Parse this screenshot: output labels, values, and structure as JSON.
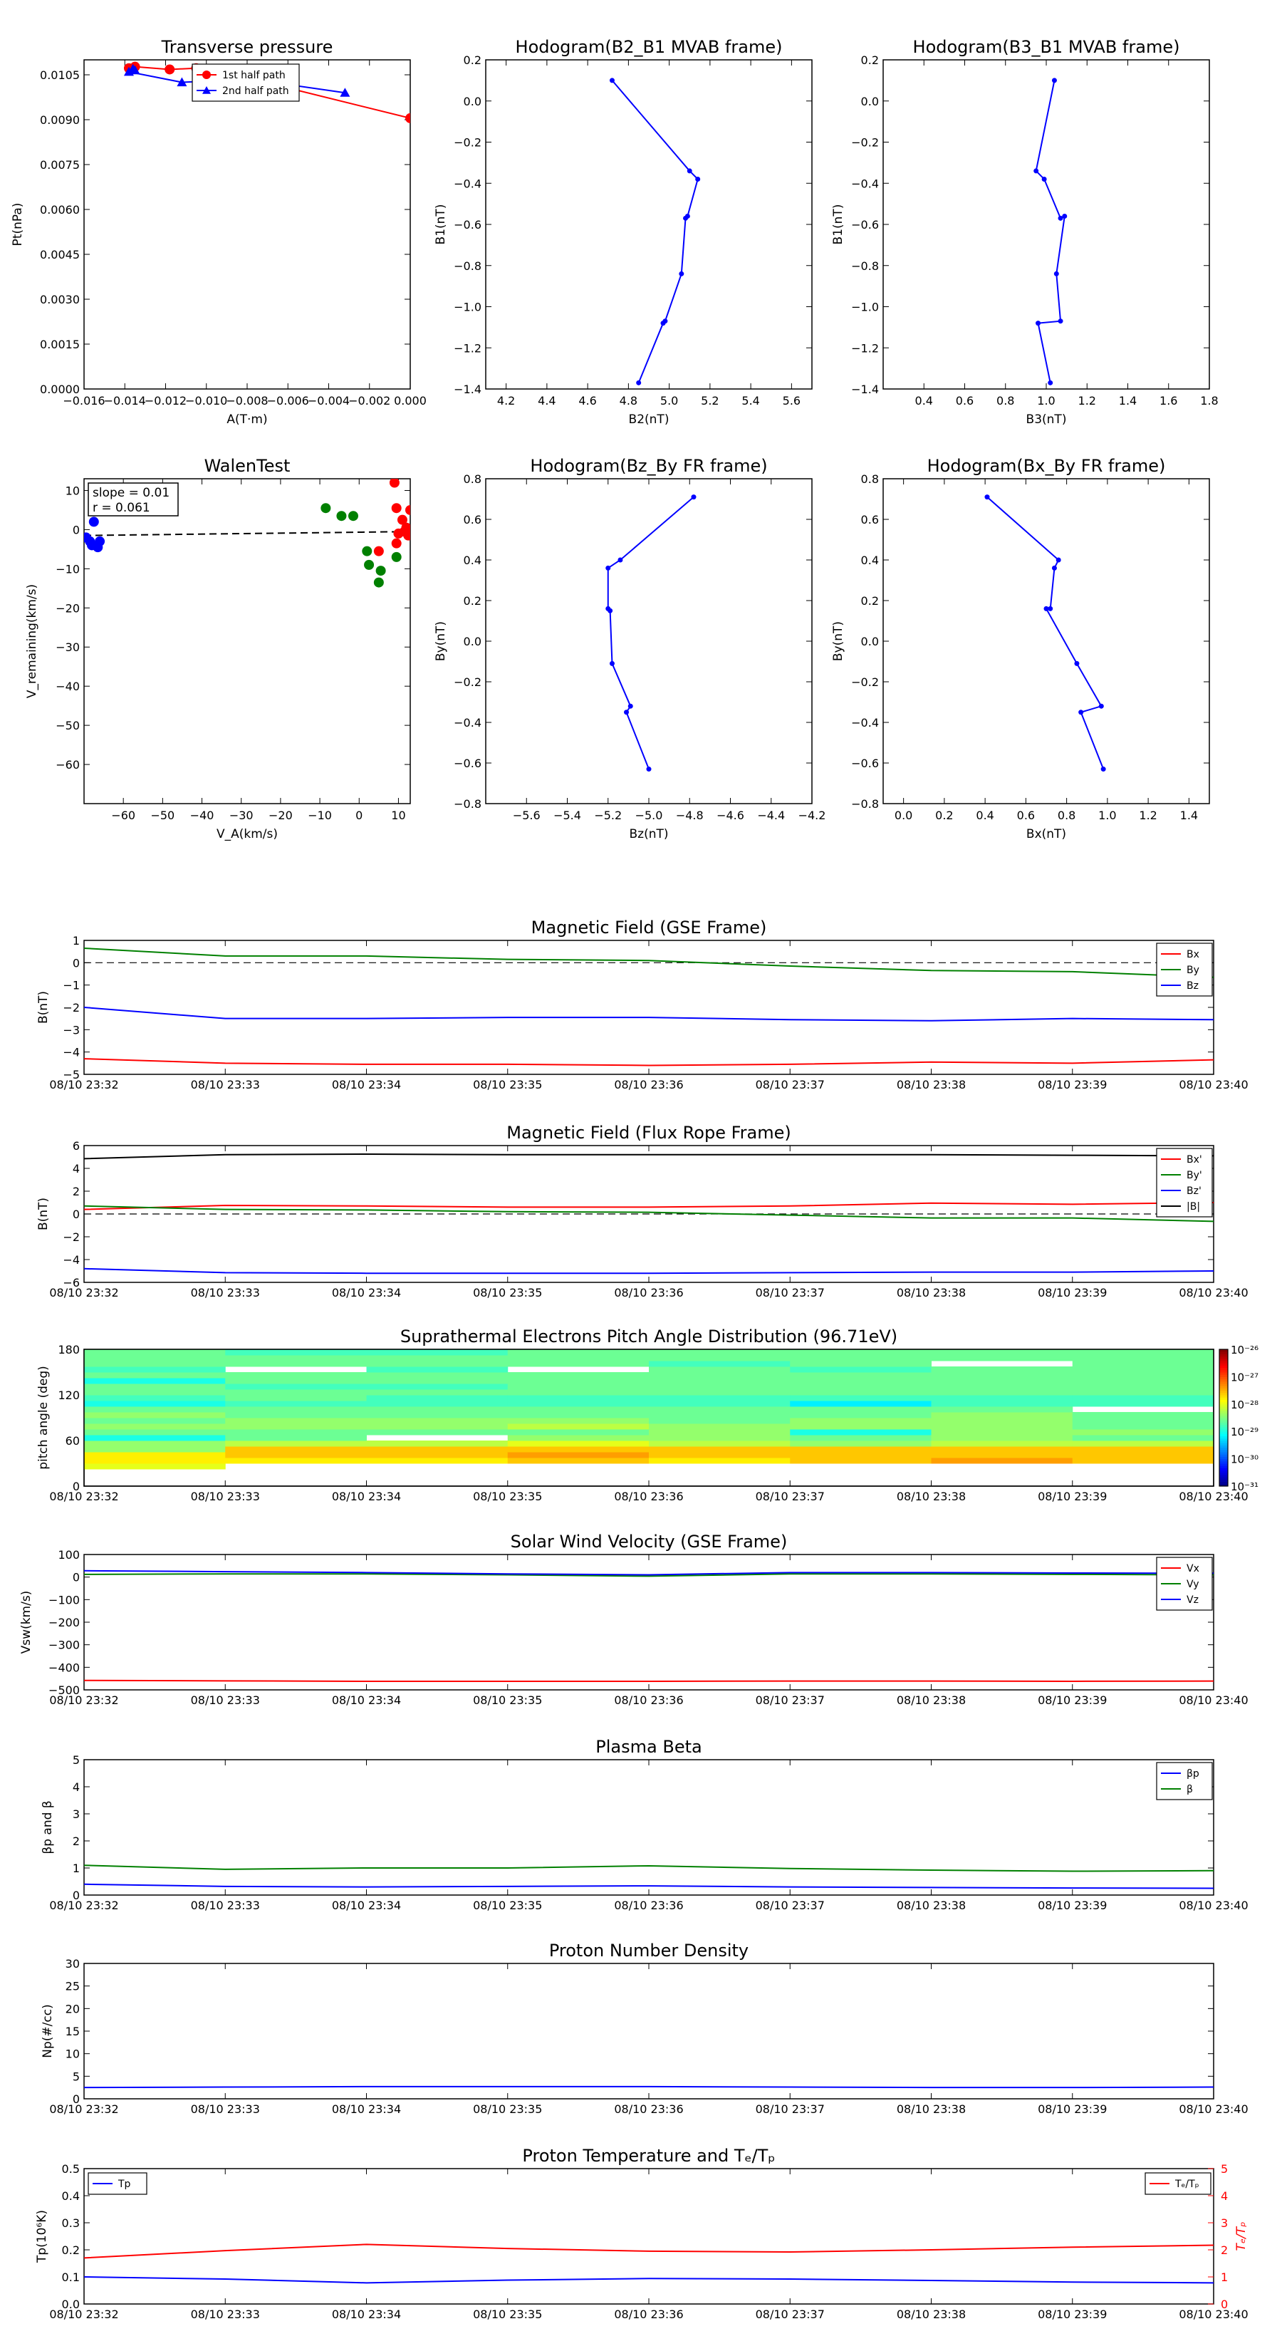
{
  "figure": {
    "background": "#ffffff"
  },
  "colors": {
    "red": "#ff0000",
    "green": "#008000",
    "blue": "#0000ff",
    "black": "#000000",
    "dashed": "#000000"
  },
  "chart_data": [
    {
      "id": "transverse_pressure",
      "type": "line",
      "title": "Transverse pressure",
      "xlabel": "A(T·m)",
      "ylabel": "Pt(nPa)",
      "xlim": [
        -0.016,
        0.0
      ],
      "ylim": [
        0.0,
        0.011
      ],
      "xticks": [
        "−0.016",
        "−0.014",
        "−0.012",
        "−0.010",
        "−0.008",
        "−0.006",
        "−0.004",
        "−0.002",
        "0.000"
      ],
      "yticks": [
        "0.0000",
        "0.0015",
        "0.0030",
        "0.0045",
        "0.0060",
        "0.0075",
        "0.0090",
        "0.0105"
      ],
      "legend_position": "top-center",
      "series": [
        {
          "name": "1st half path",
          "color": "#ff0000",
          "marker": "circle",
          "x": [
            -0.0138,
            -0.0135,
            -0.0118,
            -0.0105,
            -0.0095,
            0.0
          ],
          "y": [
            0.01072,
            0.01077,
            0.01068,
            0.01072,
            0.01065,
            0.00905
          ]
        },
        {
          "name": "2nd half path",
          "color": "#0000ff",
          "marker": "triangle",
          "x": [
            -0.0135,
            -0.0136,
            -0.0138,
            -0.0112,
            -0.0078,
            -0.0032
          ],
          "y": [
            0.01065,
            0.0107,
            0.0106,
            0.01025,
            0.01035,
            0.0099
          ]
        }
      ]
    },
    {
      "id": "hodogram_b2_b1",
      "type": "line",
      "title": "Hodogram(B2_B1 MVAB frame)",
      "xlabel": "B2(nT)",
      "ylabel": "B1(nT)",
      "xlim": [
        4.1,
        5.7
      ],
      "ylim": [
        -1.4,
        0.2
      ],
      "xticks": [
        "4.2",
        "4.4",
        "4.6",
        "4.8",
        "5.0",
        "5.2",
        "5.4",
        "5.6"
      ],
      "yticks": [
        "−1.4",
        "−1.2",
        "−1.0",
        "−0.8",
        "−0.6",
        "−0.4",
        "−0.2",
        "0.0",
        "0.2"
      ],
      "series": [
        {
          "color": "#0000ff",
          "x": [
            4.72,
            5.1,
            5.14,
            5.09,
            5.08,
            5.06,
            4.98,
            4.97,
            4.85
          ],
          "y": [
            0.1,
            -0.34,
            -0.38,
            -0.56,
            -0.57,
            -0.84,
            -1.07,
            -1.08,
            -1.37
          ]
        }
      ]
    },
    {
      "id": "hodogram_b3_b1",
      "type": "line",
      "title": "Hodogram(B3_B1 MVAB frame)",
      "xlabel": "B3(nT)",
      "ylabel": "B1(nT)",
      "xlim": [
        0.2,
        1.8
      ],
      "ylim": [
        -1.4,
        0.2
      ],
      "xticks": [
        "0.4",
        "0.6",
        "0.8",
        "1.0",
        "1.2",
        "1.4",
        "1.6",
        "1.8"
      ],
      "yticks": [
        "−1.4",
        "−1.2",
        "−1.0",
        "−0.8",
        "−0.6",
        "−0.4",
        "−0.2",
        "0.0",
        "0.2"
      ],
      "series": [
        {
          "color": "#0000ff",
          "x": [
            1.04,
            0.95,
            0.99,
            1.07,
            1.09,
            1.05,
            1.07,
            0.96,
            1.02
          ],
          "y": [
            0.1,
            -0.34,
            -0.38,
            -0.57,
            -0.56,
            -0.84,
            -1.07,
            -1.08,
            -1.37
          ]
        }
      ]
    },
    {
      "id": "walen_test",
      "type": "scatter",
      "title": "WalenTest",
      "xlabel": "V_A(km/s)",
      "ylabel": "V_remaining(km/s)",
      "xlim": [
        -70,
        13
      ],
      "ylim": [
        -70,
        13
      ],
      "xticks": [
        "−60",
        "−50",
        "−40",
        "−30",
        "−20",
        "−10",
        "0",
        "10"
      ],
      "yticks": [
        "−60",
        "−50",
        "−40",
        "−30",
        "−20",
        "−10",
        "0",
        "10"
      ],
      "annotation": [
        "slope = 0.01",
        "r = 0.061"
      ],
      "fit_line": {
        "x": [
          -70,
          13
        ],
        "y": [
          -1.5,
          -0.5
        ]
      },
      "series": [
        {
          "color": "#0000ff",
          "x": [
            -69.5,
            -68.5,
            -68.0,
            -66.5,
            -66.0,
            -67.5
          ],
          "y": [
            -2.0,
            -3.0,
            -4.0,
            -4.5,
            -3.0,
            2.0
          ]
        },
        {
          "color": "#008000",
          "x": [
            -8.5,
            -4.5,
            -1.5,
            2.0,
            2.5,
            5.5,
            5.0,
            9.5
          ],
          "y": [
            5.5,
            3.5,
            3.5,
            -5.5,
            -9.0,
            -10.5,
            -13.5,
            -7.0
          ]
        },
        {
          "color": "#ff0000",
          "x": [
            9.0,
            9.5,
            10.0,
            9.5,
            11.0,
            12.0,
            12.5,
            11.5,
            13.0,
            5.0
          ],
          "y": [
            12.0,
            5.5,
            -1.0,
            -3.5,
            2.5,
            0.5,
            -1.5,
            -0.5,
            5.0,
            -5.5
          ]
        }
      ]
    },
    {
      "id": "hodogram_bz_by",
      "type": "line",
      "title": "Hodogram(Bz_By FR frame)",
      "xlabel": "Bz(nT)",
      "ylabel": "By(nT)",
      "xlim": [
        -5.8,
        -4.2
      ],
      "ylim": [
        -0.8,
        0.8
      ],
      "xticks": [
        "−5.6",
        "−5.4",
        "−5.2",
        "−5.0",
        "−4.8",
        "−4.6",
        "−4.4",
        "−4.2"
      ],
      "yticks": [
        "−0.8",
        "−0.6",
        "−0.4",
        "−0.2",
        "0.0",
        "0.2",
        "0.4",
        "0.6",
        "0.8"
      ],
      "series": [
        {
          "color": "#0000ff",
          "x": [
            -4.78,
            -5.14,
            -5.2,
            -5.2,
            -5.19,
            -5.18,
            -5.09,
            -5.11,
            -5.0
          ],
          "y": [
            0.71,
            0.4,
            0.36,
            0.16,
            0.15,
            -0.11,
            -0.32,
            -0.35,
            -0.63
          ]
        }
      ]
    },
    {
      "id": "hodogram_bx_by",
      "type": "line",
      "title": "Hodogram(Bx_By FR frame)",
      "xlabel": "Bx(nT)",
      "ylabel": "By(nT)",
      "xlim": [
        -0.1,
        1.5
      ],
      "ylim": [
        -0.8,
        0.8
      ],
      "xticks": [
        "0.0",
        "0.2",
        "0.4",
        "0.6",
        "0.8",
        "1.0",
        "1.2",
        "1.4"
      ],
      "yticks": [
        "−0.8",
        "−0.6",
        "−0.4",
        "−0.2",
        "0.0",
        "0.2",
        "0.4",
        "0.6",
        "0.8"
      ],
      "series": [
        {
          "color": "#0000ff",
          "x": [
            0.41,
            0.76,
            0.74,
            0.72,
            0.7,
            0.85,
            0.97,
            0.87,
            0.98
          ],
          "y": [
            0.71,
            0.4,
            0.36,
            0.16,
            0.16,
            -0.11,
            -0.32,
            -0.35,
            -0.63
          ]
        }
      ]
    },
    {
      "id": "magnetic_field_gse",
      "type": "line",
      "title": "Magnetic Field (GSE Frame)",
      "ylabel": "B(nT)",
      "x": [
        "08/10 23:32",
        "08/10 23:33",
        "08/10 23:34",
        "08/10 23:35",
        "08/10 23:36",
        "08/10 23:37",
        "08/10 23:38",
        "08/10 23:39",
        "08/10 23:40"
      ],
      "ylim": [
        -5,
        1
      ],
      "yticks": [
        "−5",
        "−4",
        "−3",
        "−2",
        "−1",
        "0",
        "1"
      ],
      "zero_line": true,
      "legend_position": "top-right",
      "series": [
        {
          "name": "Bx",
          "color": "#ff0000",
          "values": [
            -4.3,
            -4.5,
            -4.55,
            -4.55,
            -4.6,
            -4.55,
            -4.45,
            -4.5,
            -4.35
          ]
        },
        {
          "name": "By",
          "color": "#008000",
          "values": [
            0.65,
            0.3,
            0.3,
            0.15,
            0.1,
            -0.15,
            -0.35,
            -0.4,
            -0.65
          ]
        },
        {
          "name": "Bz",
          "color": "#0000ff",
          "values": [
            -2.0,
            -2.5,
            -2.5,
            -2.45,
            -2.45,
            -2.55,
            -2.6,
            -2.5,
            -2.55
          ]
        }
      ]
    },
    {
      "id": "magnetic_field_fr",
      "type": "line",
      "title": "Magnetic Field (Flux Rope Frame)",
      "ylabel": "B(nT)",
      "x": [
        "08/10 23:32",
        "08/10 23:33",
        "08/10 23:34",
        "08/10 23:35",
        "08/10 23:36",
        "08/10 23:37",
        "08/10 23:38",
        "08/10 23:39",
        "08/10 23:40"
      ],
      "ylim": [
        -6,
        6
      ],
      "yticks": [
        "−6",
        "−4",
        "−2",
        "0",
        "2",
        "4",
        "6"
      ],
      "zero_line": true,
      "legend_position": "top-right",
      "series": [
        {
          "name": "Bx'",
          "color": "#ff0000",
          "values": [
            0.4,
            0.75,
            0.7,
            0.6,
            0.6,
            0.7,
            0.95,
            0.85,
            1.0
          ]
        },
        {
          "name": "By'",
          "color": "#008000",
          "values": [
            0.7,
            0.4,
            0.35,
            0.2,
            0.15,
            -0.1,
            -0.35,
            -0.35,
            -0.65
          ]
        },
        {
          "name": "Bz'",
          "color": "#0000ff",
          "values": [
            -4.8,
            -5.15,
            -5.2,
            -5.2,
            -5.2,
            -5.15,
            -5.1,
            -5.1,
            -5.0
          ]
        },
        {
          "name": "|B|",
          "color": "#000000",
          "values": [
            4.85,
            5.2,
            5.25,
            5.2,
            5.2,
            5.2,
            5.2,
            5.15,
            5.1
          ]
        }
      ]
    },
    {
      "id": "pitch_angle",
      "type": "heatmap",
      "title": "Suprathermal Electrons Pitch Angle Distribution (96.71eV)",
      "ylabel": "pitch angle (deg)",
      "x": [
        "08/10 23:32",
        "08/10 23:33",
        "08/10 23:34",
        "08/10 23:35",
        "08/10 23:36",
        "08/10 23:37",
        "08/10 23:38",
        "08/10 23:39",
        "08/10 23:40"
      ],
      "ylim": [
        0,
        180
      ],
      "yticks": [
        "0",
        "60",
        "120",
        "180"
      ],
      "colorbar_ticks": [
        "10⁻³¹",
        "10⁻³⁰",
        "10⁻²⁹",
        "10⁻²⁸",
        "10⁻²⁷",
        "10⁻²⁶"
      ],
      "colorbar_range": [
        -31,
        -26
      ],
      "bins": [
        0,
        22.5,
        30,
        37.5,
        45,
        52.5,
        60,
        67.5,
        75,
        82.5,
        90,
        97.5,
        105,
        112.5,
        120,
        127.5,
        135,
        142.5,
        150,
        157.5,
        165,
        172.5,
        180
      ],
      "log_values": [
        [
          null,
          -28.0,
          -27.8,
          -27.8,
          -28.4,
          -28.4,
          -29.0,
          -28.6,
          -28.4,
          -28.6,
          -28.4,
          -28.6,
          -29.0,
          -28.8,
          -28.6,
          -28.6,
          -29.0,
          -28.6,
          -28.8,
          -28.6,
          -28.6,
          -28.6
        ],
        [
          null,
          null,
          -27.8,
          -27.6,
          -27.6,
          -28.2,
          -28.6,
          -28.6,
          -28.4,
          -28.4,
          -28.6,
          -28.6,
          -28.8,
          -28.6,
          -28.6,
          -28.8,
          -28.6,
          -28.6,
          null,
          -28.6,
          -28.6,
          -28.8
        ],
        [
          null,
          null,
          -27.8,
          -27.6,
          -27.6,
          -28.2,
          null,
          -28.6,
          -28.4,
          -28.4,
          -28.6,
          -28.6,
          -28.8,
          -28.8,
          -28.6,
          -28.8,
          -28.6,
          -28.6,
          -28.8,
          -28.6,
          -28.6,
          -28.8
        ],
        [
          null,
          null,
          -27.6,
          -27.4,
          -27.6,
          -28.0,
          -28.4,
          -28.6,
          -28.2,
          -28.4,
          -28.6,
          -28.6,
          -28.8,
          -28.8,
          -28.6,
          -28.6,
          -28.6,
          -28.6,
          null,
          -28.6,
          -28.6,
          -28.6
        ],
        [
          null,
          null,
          -27.8,
          -27.6,
          -27.6,
          -28.2,
          -28.4,
          -28.4,
          -28.4,
          -28.6,
          -28.6,
          -28.6,
          -28.8,
          -28.8,
          -28.6,
          -28.6,
          -28.6,
          -28.6,
          -28.6,
          -28.8,
          -28.6,
          -28.6
        ],
        [
          null,
          null,
          -27.6,
          -27.6,
          -27.6,
          -28.4,
          -28.6,
          -29.0,
          -28.4,
          -28.4,
          -28.6,
          -28.6,
          -29.2,
          -28.8,
          -28.6,
          -28.6,
          -28.6,
          -28.6,
          -28.8,
          -28.6,
          -28.6,
          -28.6
        ],
        [
          null,
          null,
          -27.4,
          -27.6,
          -27.6,
          -28.2,
          -28.4,
          -28.4,
          -28.4,
          -28.4,
          -28.4,
          -28.6,
          -28.8,
          -28.8,
          -28.6,
          -28.6,
          -28.6,
          -28.6,
          -28.6,
          null,
          -28.6,
          -28.6
        ],
        [
          null,
          null,
          -27.6,
          -27.6,
          -27.6,
          -28.2,
          -28.6,
          -28.4,
          -28.6,
          -28.6,
          -28.6,
          null,
          -28.8,
          -28.8,
          -28.6,
          -28.6,
          -28.6,
          -28.6,
          -28.6,
          -28.6,
          -28.6,
          -28.6
        ]
      ]
    },
    {
      "id": "solar_wind_velocity",
      "type": "line",
      "title": "Solar Wind Velocity (GSE Frame)",
      "ylabel": "Vsw(km/s)",
      "x": [
        "08/10 23:32",
        "08/10 23:33",
        "08/10 23:34",
        "08/10 23:35",
        "08/10 23:36",
        "08/10 23:37",
        "08/10 23:38",
        "08/10 23:39",
        "08/10 23:40"
      ],
      "ylim": [
        -500,
        100
      ],
      "yticks": [
        "−500",
        "−400",
        "−300",
        "−200",
        "−100",
        "0",
        "100"
      ],
      "legend_position": "top-right",
      "series": [
        {
          "name": "Vx",
          "color": "#ff0000",
          "values": [
            -458,
            -460,
            -462,
            -462,
            -462,
            -461,
            -461,
            -462,
            -461
          ]
        },
        {
          "name": "Vy",
          "color": "#008000",
          "values": [
            12,
            14,
            14,
            10,
            4,
            14,
            14,
            12,
            10
          ]
        },
        {
          "name": "Vz",
          "color": "#0000ff",
          "values": [
            28,
            24,
            20,
            14,
            10,
            20,
            20,
            18,
            17
          ]
        }
      ]
    },
    {
      "id": "plasma_beta",
      "type": "line",
      "title": "Plasma Beta",
      "ylabel": "βp and β",
      "x": [
        "08/10 23:32",
        "08/10 23:33",
        "08/10 23:34",
        "08/10 23:35",
        "08/10 23:36",
        "08/10 23:37",
        "08/10 23:38",
        "08/10 23:39",
        "08/10 23:40"
      ],
      "ylim": [
        0,
        5
      ],
      "yticks": [
        "0",
        "1",
        "2",
        "3",
        "4",
        "5"
      ],
      "legend_position": "top-right",
      "series": [
        {
          "name": "βp",
          "color": "#0000ff",
          "values": [
            0.4,
            0.32,
            0.3,
            0.32,
            0.34,
            0.3,
            0.28,
            0.26,
            0.25
          ]
        },
        {
          "name": "β",
          "color": "#008000",
          "values": [
            1.1,
            0.95,
            1.0,
            1.0,
            1.08,
            0.98,
            0.92,
            0.88,
            0.9
          ]
        }
      ]
    },
    {
      "id": "proton_density",
      "type": "line",
      "title": "Proton Number Density",
      "ylabel": "Np(#/cc)",
      "x": [
        "08/10 23:32",
        "08/10 23:33",
        "08/10 23:34",
        "08/10 23:35",
        "08/10 23:36",
        "08/10 23:37",
        "08/10 23:38",
        "08/10 23:39",
        "08/10 23:40"
      ],
      "ylim": [
        0,
        30
      ],
      "yticks": [
        "0",
        "5",
        "10",
        "15",
        "20",
        "25",
        "30"
      ],
      "series": [
        {
          "color": "#0000ff",
          "values": [
            2.5,
            2.6,
            2.7,
            2.7,
            2.7,
            2.6,
            2.5,
            2.5,
            2.6
          ]
        }
      ]
    },
    {
      "id": "proton_temperature",
      "type": "line",
      "title": "Proton Temperature and Tₑ/Tₚ",
      "ylabel": "Tp(10⁶K)",
      "y2label": "Tₑ/Tₚ",
      "x": [
        "08/10 23:32",
        "08/10 23:33",
        "08/10 23:34",
        "08/10 23:35",
        "08/10 23:36",
        "08/10 23:37",
        "08/10 23:38",
        "08/10 23:39",
        "08/10 23:40"
      ],
      "ylim": [
        0,
        0.5
      ],
      "yticks": [
        "0.0",
        "0.1",
        "0.2",
        "0.3",
        "0.4",
        "0.5"
      ],
      "y2lim": [
        0,
        5
      ],
      "y2ticks": [
        "0",
        "1",
        "2",
        "3",
        "4",
        "5"
      ],
      "series": [
        {
          "name": "Tp",
          "axis": "left",
          "color": "#0000ff",
          "legend_position": "top-left",
          "values": [
            0.1,
            0.092,
            0.078,
            0.088,
            0.094,
            0.092,
            0.087,
            0.081,
            0.078
          ]
        },
        {
          "name": "Tₑ/Tₚ",
          "axis": "right",
          "color": "#ff0000",
          "legend_position": "top-right",
          "values": [
            1.7,
            1.97,
            2.2,
            2.05,
            1.95,
            1.92,
            2.0,
            2.1,
            2.17
          ]
        }
      ]
    }
  ]
}
